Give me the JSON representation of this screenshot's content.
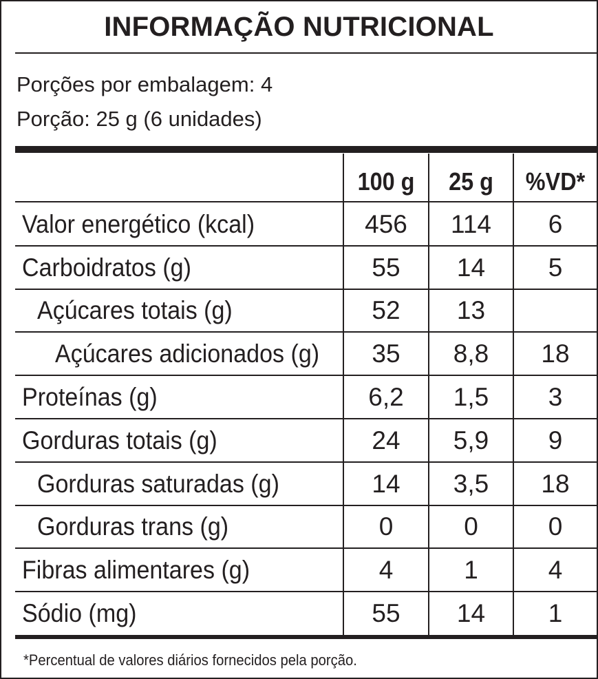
{
  "title": "INFORMAÇÃO NUTRICIONAL",
  "servings_per_package": "Porções por embalagem: 4",
  "serving_size": "Porção: 25 g (6 unidades)",
  "columns": [
    "100 g",
    "25 g",
    "%VD*"
  ],
  "rows": [
    {
      "label": "Valor energético (kcal)",
      "indent": 0,
      "per100g": "456",
      "per25g": "114",
      "vd": "6"
    },
    {
      "label": "Carboidratos (g)",
      "indent": 0,
      "per100g": "55",
      "per25g": "14",
      "vd": "5"
    },
    {
      "label": "Açúcares totais (g)",
      "indent": 1,
      "per100g": "52",
      "per25g": "13",
      "vd": ""
    },
    {
      "label": "Açúcares adicionados (g)",
      "indent": 2,
      "per100g": "35",
      "per25g": "8,8",
      "vd": "18"
    },
    {
      "label": "Proteínas (g)",
      "indent": 0,
      "per100g": "6,2",
      "per25g": "1,5",
      "vd": "3"
    },
    {
      "label": "Gorduras totais (g)",
      "indent": 0,
      "per100g": "24",
      "per25g": "5,9",
      "vd": "9"
    },
    {
      "label": "Gorduras saturadas (g)",
      "indent": 1,
      "per100g": "14",
      "per25g": "3,5",
      "vd": "18"
    },
    {
      "label": "Gorduras trans (g)",
      "indent": 1,
      "per100g": "0",
      "per25g": "0",
      "vd": "0"
    },
    {
      "label": "Fibras alimentares (g)",
      "indent": 0,
      "per100g": "4",
      "per25g": "1",
      "vd": "4"
    },
    {
      "label": "Sódio (mg)",
      "indent": 0,
      "per100g": "55",
      "per25g": "14",
      "vd": "1"
    }
  ],
  "footnote": "*Percentual de valores diários fornecidos pela porção."
}
